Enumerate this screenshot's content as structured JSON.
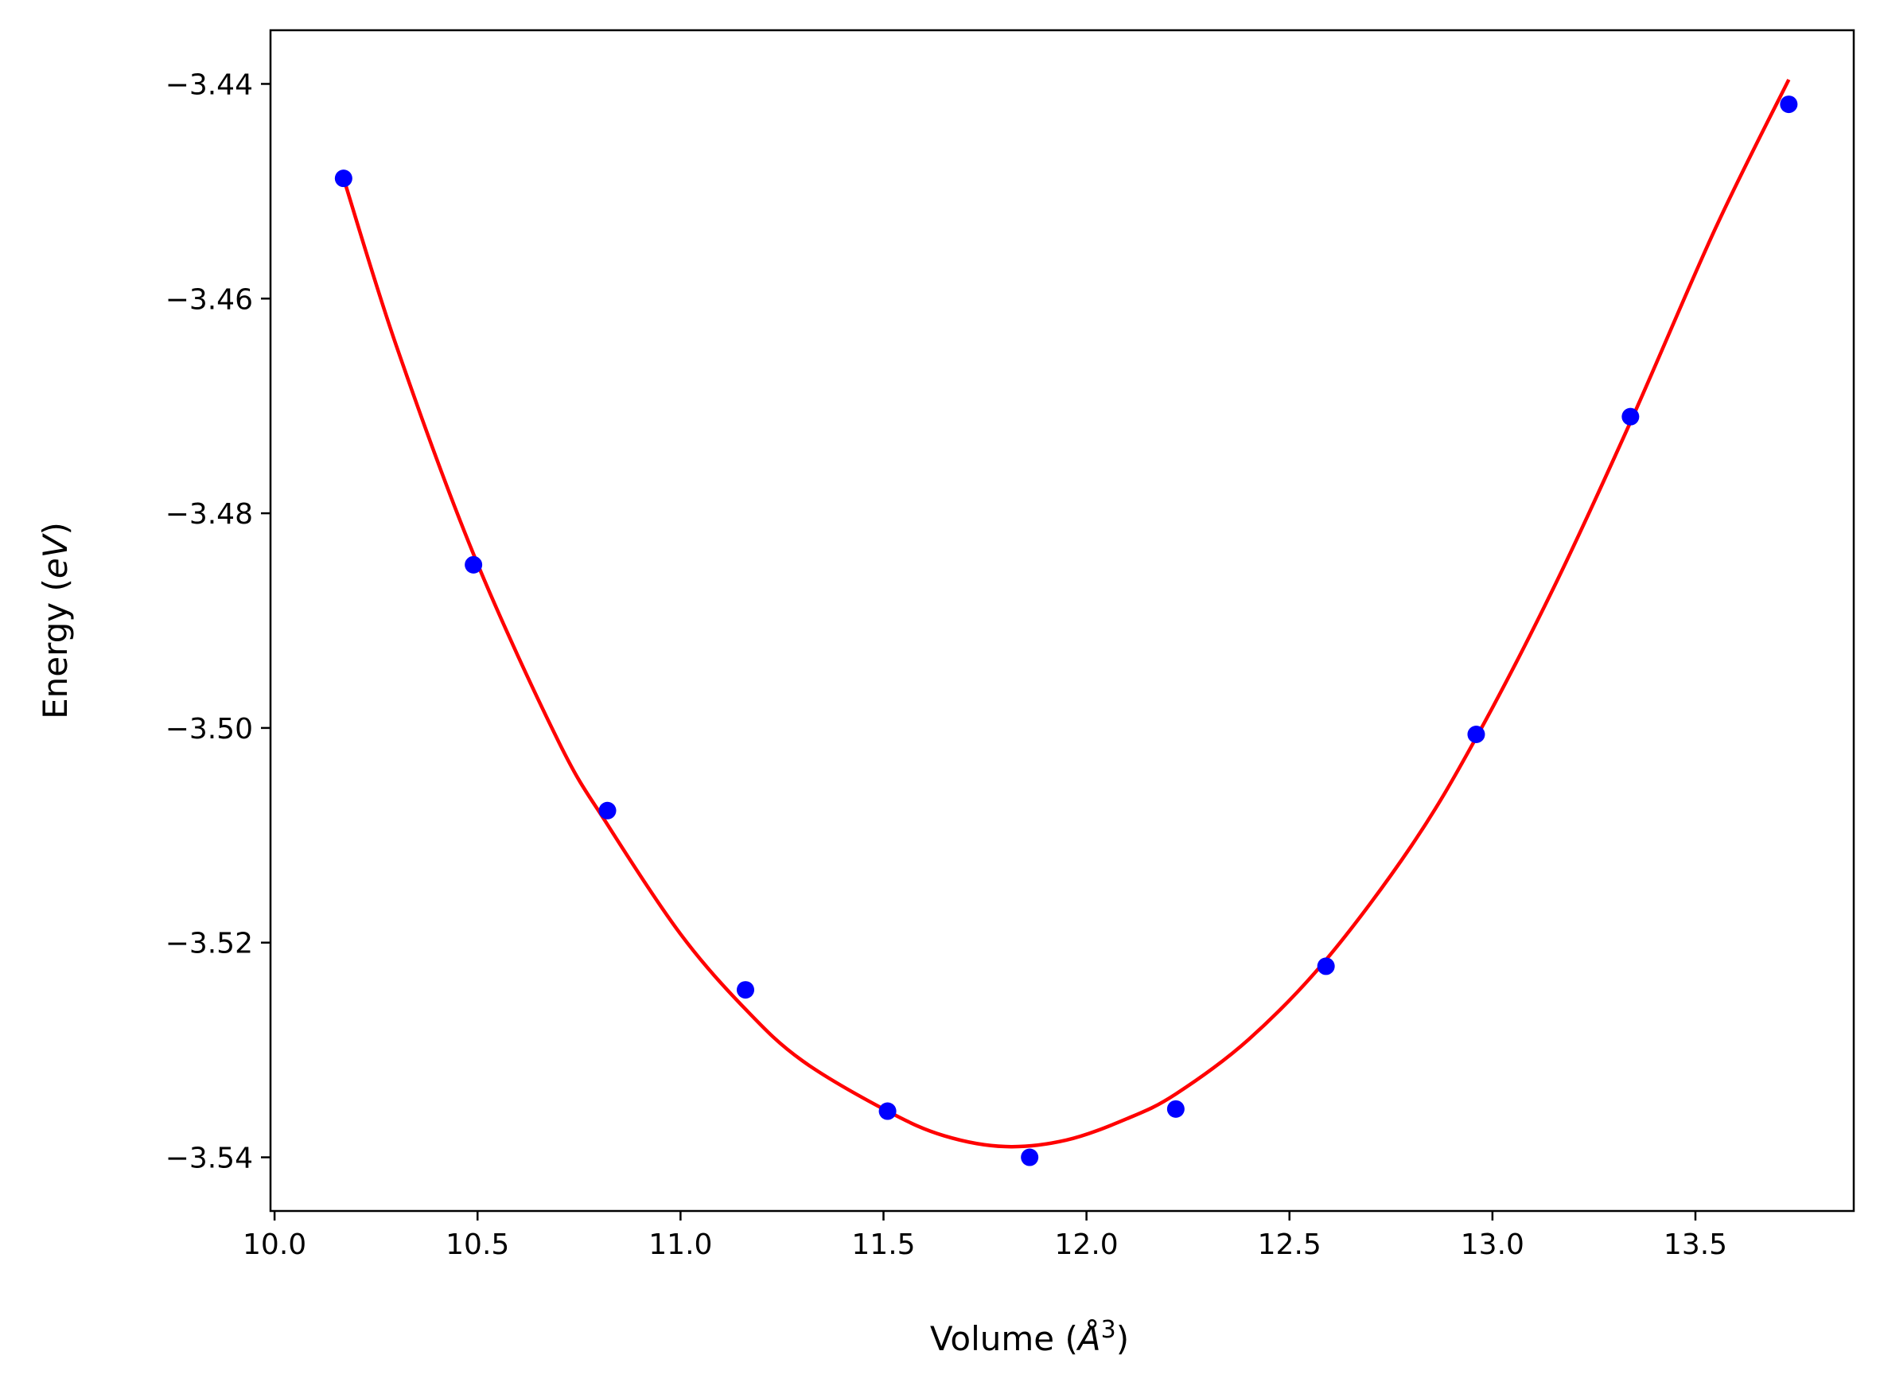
{
  "chart_data": {
    "type": "scatter",
    "title": "",
    "xlabel": "Volume (Å³)",
    "xlabel_parts": {
      "pre": "Volume (",
      "symbol": "Å",
      "sup": "3",
      "post": ")"
    },
    "ylabel": "Energy (eV)",
    "ylabel_parts": {
      "pre": "Energy (",
      "unit": "eV",
      "post": ")"
    },
    "xlim": [
      9.99,
      13.89
    ],
    "ylim": [
      -3.545,
      -3.435
    ],
    "x_ticks": [
      10.0,
      10.5,
      11.0,
      11.5,
      12.0,
      12.5,
      13.0,
      13.5
    ],
    "x_tick_labels": [
      "10.0",
      "10.5",
      "11.0",
      "11.5",
      "12.0",
      "12.5",
      "13.0",
      "13.5"
    ],
    "y_ticks": [
      -3.44,
      -3.46,
      -3.48,
      -3.5,
      -3.52,
      -3.54
    ],
    "y_tick_labels": [
      "−3.44",
      "−3.46",
      "−3.48",
      "−3.50",
      "−3.52",
      "−3.54"
    ],
    "grid": false,
    "series": [
      {
        "kind": "scatter",
        "color": "#0000ff",
        "points": [
          {
            "x": 10.17,
            "y": -3.4488
          },
          {
            "x": 10.49,
            "y": -3.4848
          },
          {
            "x": 10.82,
            "y": -3.5077
          },
          {
            "x": 11.16,
            "y": -3.5244
          },
          {
            "x": 11.51,
            "y": -3.5357
          },
          {
            "x": 11.86,
            "y": -3.54
          },
          {
            "x": 12.22,
            "y": -3.5355
          },
          {
            "x": 12.59,
            "y": -3.5222
          },
          {
            "x": 12.96,
            "y": -3.5006
          },
          {
            "x": 13.34,
            "y": -3.471
          },
          {
            "x": 13.73,
            "y": -3.4419
          }
        ]
      },
      {
        "kind": "line",
        "color": "#ff0000",
        "points": [
          {
            "x": 10.17,
            "y": -3.4488
          },
          {
            "x": 10.3,
            "y": -3.4644
          },
          {
            "x": 10.49,
            "y": -3.4838
          },
          {
            "x": 10.7,
            "y": -3.5013
          },
          {
            "x": 10.82,
            "y": -3.509
          },
          {
            "x": 11.0,
            "y": -3.5192
          },
          {
            "x": 11.16,
            "y": -3.5262
          },
          {
            "x": 11.3,
            "y": -3.531
          },
          {
            "x": 11.51,
            "y": -3.5357
          },
          {
            "x": 11.65,
            "y": -3.538
          },
          {
            "x": 11.8,
            "y": -3.539
          },
          {
            "x": 11.95,
            "y": -3.5384
          },
          {
            "x": 12.1,
            "y": -3.5364
          },
          {
            "x": 12.22,
            "y": -3.5341
          },
          {
            "x": 12.4,
            "y": -3.529
          },
          {
            "x": 12.59,
            "y": -3.5216
          },
          {
            "x": 12.8,
            "y": -3.511
          },
          {
            "x": 12.96,
            "y": -3.5009
          },
          {
            "x": 13.15,
            "y": -3.487
          },
          {
            "x": 13.34,
            "y": -3.4715
          },
          {
            "x": 13.55,
            "y": -3.4534
          },
          {
            "x": 13.73,
            "y": -3.4396
          }
        ]
      }
    ]
  }
}
